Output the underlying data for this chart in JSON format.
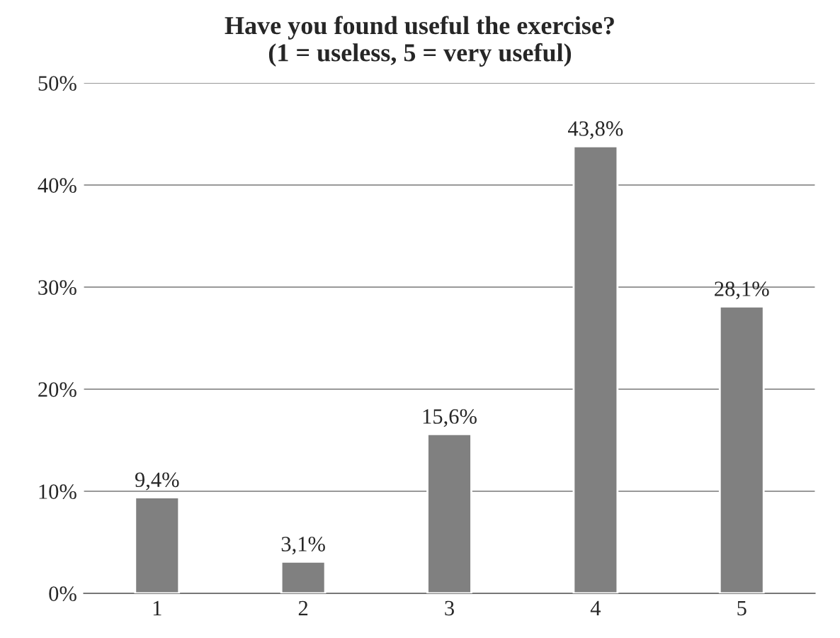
{
  "chart_data": {
    "type": "bar",
    "title": "Have you found useful the exercise?\n(1 = useless, 5 = very useful)",
    "categories": [
      "1",
      "2",
      "3",
      "4",
      "5"
    ],
    "values": [
      9.4,
      3.1,
      15.6,
      43.8,
      28.1
    ],
    "value_labels": [
      "9,4%",
      "3,1%",
      "15,6%",
      "43,8%",
      "28,1%"
    ],
    "color": "#808080",
    "ylim": [
      0,
      50
    ],
    "yticks": [
      {
        "value": 0,
        "label": "0%"
      },
      {
        "value": 10,
        "label": "10%"
      },
      {
        "value": 20,
        "label": "20%"
      },
      {
        "value": 30,
        "label": "30%"
      },
      {
        "value": 40,
        "label": "40%"
      },
      {
        "value": 50,
        "label": "50%"
      }
    ],
    "grid": "y",
    "legend": false
  }
}
